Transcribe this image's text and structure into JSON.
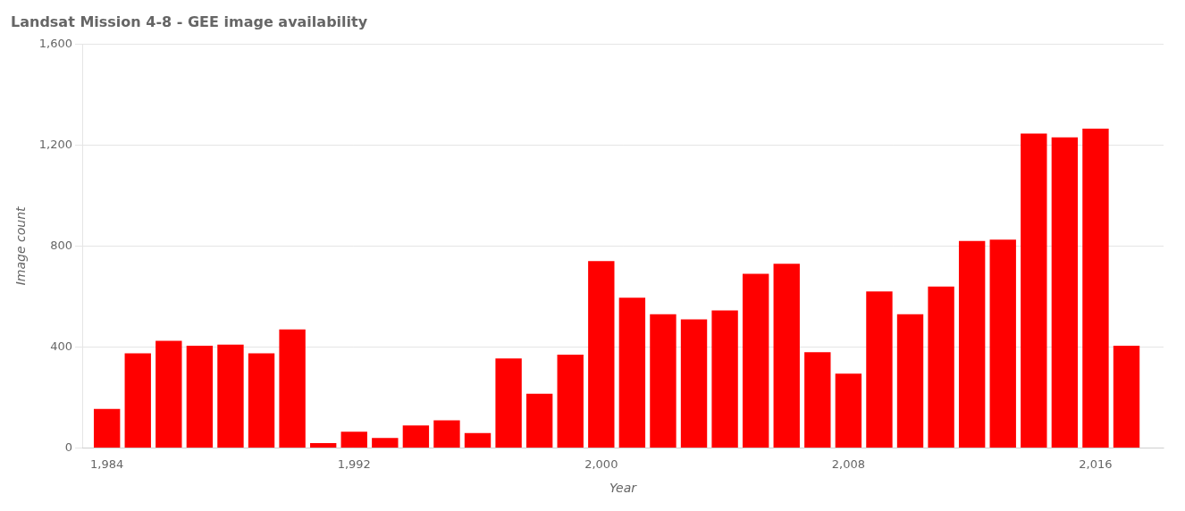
{
  "chart_data": {
    "type": "bar",
    "title": "Landsat Mission 4-8 - GEE image availability",
    "xlabel": "Year",
    "ylabel": "Image count",
    "color": "#ff0000",
    "x": [
      1984,
      1985,
      1986,
      1987,
      1988,
      1989,
      1990,
      1991,
      1992,
      1993,
      1994,
      1995,
      1996,
      1997,
      1998,
      1999,
      2000,
      2001,
      2002,
      2003,
      2004,
      2005,
      2006,
      2007,
      2008,
      2009,
      2010,
      2011,
      2012,
      2013,
      2014,
      2015,
      2016,
      2017
    ],
    "values": [
      155,
      375,
      425,
      405,
      410,
      375,
      470,
      20,
      65,
      40,
      90,
      110,
      60,
      355,
      215,
      370,
      740,
      595,
      530,
      510,
      545,
      690,
      730,
      380,
      295,
      620,
      530,
      640,
      820,
      825,
      1245,
      1230,
      1265,
      405
    ],
    "xlim": [
      1983.2,
      2018.2
    ],
    "xticks": [
      {
        "value": 1984,
        "label": "1,984"
      },
      {
        "value": 1992,
        "label": "1,992"
      },
      {
        "value": 2000,
        "label": "2,000"
      },
      {
        "value": 2008,
        "label": "2,008"
      },
      {
        "value": 2016,
        "label": "2,016"
      }
    ],
    "ylim": [
      0,
      1600
    ],
    "yticks": [
      0,
      400,
      800,
      {
        "value": 1200,
        "label": "1,200"
      },
      {
        "value": 1600,
        "label": "1,600"
      }
    ],
    "grid": "y"
  }
}
